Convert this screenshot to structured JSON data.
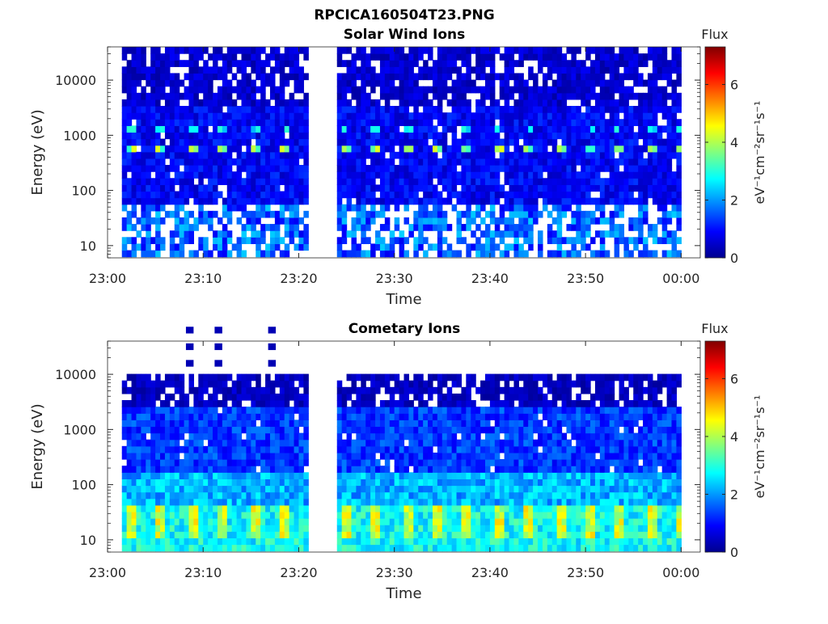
{
  "figure_title": "RPCICA160504T23.PNG",
  "colormap": [
    "#00008f",
    "#0000ff",
    "#0080ff",
    "#00ffff",
    "#80ff80",
    "#ffff00",
    "#ff8000",
    "#ff0000",
    "#800000"
  ],
  "chart_data": [
    {
      "type": "heatmap",
      "title": "Solar Wind Ions",
      "xlabel": "Time",
      "ylabel": "Energy (eV)",
      "x_ticks": [
        "23:00",
        "23:10",
        "23:20",
        "23:30",
        "23:40",
        "23:50",
        "00:00"
      ],
      "x_range_minutes": [
        0,
        62
      ],
      "y_scale": "log",
      "y_ticks": [
        "10",
        "100",
        "1000",
        "10000"
      ],
      "y_range": [
        6,
        40000
      ],
      "data_gap_minutes": [
        21,
        24
      ],
      "data_coverage_minutes": [
        1.5,
        59.8
      ],
      "colorbar": {
        "label": "Flux",
        "units": "eV⁻¹cm⁻²sr⁻¹s⁻¹",
        "ticks": [
          "0",
          "2",
          "4",
          "6"
        ],
        "range": [
          0,
          7.3
        ]
      },
      "features": [
        {
          "description": "periodic peaks",
          "energy_eV": [
            500,
            700
          ],
          "level": 4,
          "period_minutes": 3.2
        },
        {
          "description": "secondary periodic peaks",
          "energy_eV": [
            1200,
            1600
          ],
          "level": 3
        }
      ]
    },
    {
      "type": "heatmap",
      "title": "Cometary Ions",
      "xlabel": "Time",
      "ylabel": "Energy (eV)",
      "x_ticks": [
        "23:00",
        "23:10",
        "23:20",
        "23:30",
        "23:40",
        "23:50",
        "00:00"
      ],
      "x_range_minutes": [
        0,
        62
      ],
      "y_scale": "log",
      "y_ticks": [
        "10",
        "100",
        "1000",
        "10000"
      ],
      "y_range": [
        6,
        40000
      ],
      "data_gap_minutes": [
        21,
        24
      ],
      "data_coverage_minutes": [
        1.5,
        59.8
      ],
      "colorbar": {
        "label": "Flux",
        "units": "eV⁻¹cm⁻²sr⁻¹s⁻¹",
        "ticks": [
          "0",
          "2",
          "4",
          "6"
        ],
        "range": [
          0,
          7.3
        ]
      },
      "features": [
        {
          "description": "periodic peaks",
          "energy_eV": [
            12,
            35
          ],
          "level": 4.5,
          "period_minutes": 3.2
        },
        {
          "description": "upper energy cutoff",
          "energy_eV": [
            11000,
            11000
          ]
        }
      ]
    }
  ]
}
